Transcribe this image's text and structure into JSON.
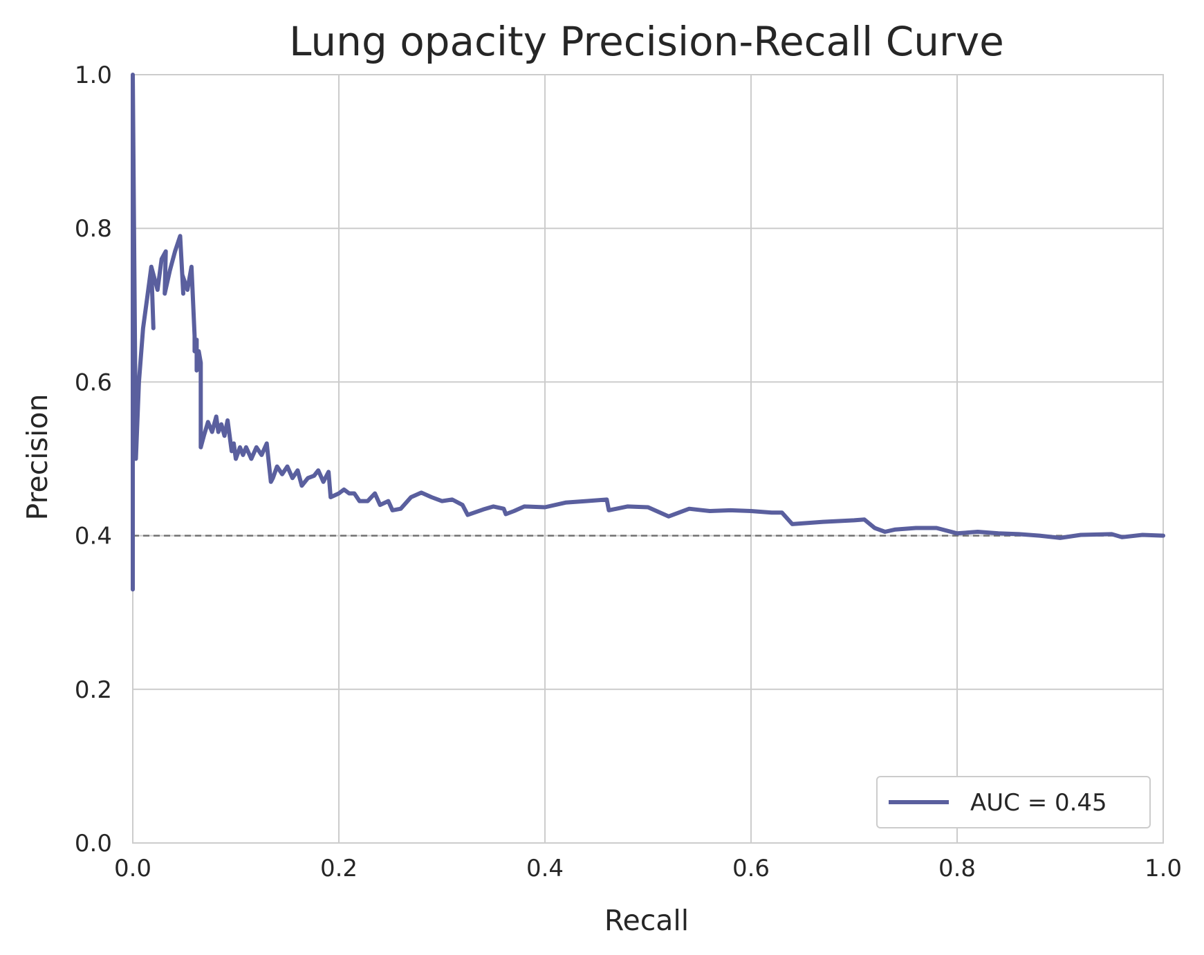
{
  "chart_data": {
    "type": "line",
    "title": "Lung opacity Precision-Recall Curve",
    "xlabel": "Recall",
    "ylabel": "Precision",
    "xlim": [
      0.0,
      1.0
    ],
    "ylim": [
      0.0,
      1.0
    ],
    "xticks": [
      "0.0",
      "0.2",
      "0.4",
      "0.6",
      "0.8",
      "1.0"
    ],
    "yticks": [
      "0.0",
      "0.2",
      "0.4",
      "0.6",
      "0.8",
      "1.0"
    ],
    "grid": true,
    "legend_position": "lower-right",
    "baseline": {
      "y": 0.4,
      "style": "dashed",
      "color": "#707070"
    },
    "series": [
      {
        "name": "AUC = 0.45",
        "color": "#5a5f9e",
        "x": [
          0.0,
          0.0,
          0.003,
          0.006,
          0.01,
          0.014,
          0.018,
          0.02,
          0.018,
          0.024,
          0.028,
          0.032,
          0.031,
          0.036,
          0.041,
          0.046,
          0.049,
          0.048,
          0.053,
          0.057,
          0.06,
          0.06,
          0.062,
          0.062,
          0.064,
          0.064,
          0.066,
          0.066,
          0.069,
          0.073,
          0.077,
          0.081,
          0.083,
          0.086,
          0.089,
          0.092,
          0.096,
          0.098,
          0.1,
          0.104,
          0.107,
          0.11,
          0.115,
          0.12,
          0.125,
          0.13,
          0.134,
          0.136,
          0.14,
          0.145,
          0.15,
          0.155,
          0.16,
          0.164,
          0.17,
          0.176,
          0.18,
          0.185,
          0.19,
          0.192,
          0.2,
          0.205,
          0.21,
          0.215,
          0.22,
          0.228,
          0.235,
          0.24,
          0.248,
          0.252,
          0.26,
          0.27,
          0.28,
          0.29,
          0.3,
          0.31,
          0.32,
          0.325,
          0.34,
          0.35,
          0.36,
          0.362,
          0.37,
          0.38,
          0.4,
          0.42,
          0.44,
          0.46,
          0.462,
          0.48,
          0.5,
          0.52,
          0.54,
          0.56,
          0.58,
          0.6,
          0.62,
          0.63,
          0.64,
          0.67,
          0.7,
          0.71,
          0.72,
          0.73,
          0.74,
          0.76,
          0.78,
          0.8,
          0.82,
          0.84,
          0.86,
          0.88,
          0.9,
          0.92,
          0.95,
          0.96,
          0.98,
          1.0
        ],
        "y": [
          0.33,
          1.0,
          0.5,
          0.6,
          0.67,
          0.71,
          0.75,
          0.67,
          0.75,
          0.72,
          0.76,
          0.77,
          0.715,
          0.745,
          0.77,
          0.79,
          0.715,
          0.74,
          0.72,
          0.75,
          0.66,
          0.64,
          0.655,
          0.615,
          0.62,
          0.64,
          0.625,
          0.515,
          0.53,
          0.548,
          0.535,
          0.555,
          0.535,
          0.545,
          0.53,
          0.55,
          0.51,
          0.52,
          0.5,
          0.515,
          0.505,
          0.515,
          0.5,
          0.515,
          0.505,
          0.52,
          0.47,
          0.475,
          0.49,
          0.48,
          0.49,
          0.475,
          0.485,
          0.465,
          0.475,
          0.478,
          0.485,
          0.47,
          0.483,
          0.45,
          0.455,
          0.46,
          0.455,
          0.455,
          0.445,
          0.445,
          0.455,
          0.44,
          0.445,
          0.433,
          0.435,
          0.45,
          0.456,
          0.45,
          0.445,
          0.447,
          0.44,
          0.427,
          0.434,
          0.438,
          0.435,
          0.428,
          0.432,
          0.438,
          0.437,
          0.443,
          0.445,
          0.447,
          0.433,
          0.438,
          0.437,
          0.425,
          0.435,
          0.432,
          0.433,
          0.432,
          0.43,
          0.43,
          0.415,
          0.418,
          0.42,
          0.421,
          0.41,
          0.405,
          0.408,
          0.41,
          0.41,
          0.403,
          0.405,
          0.403,
          0.402,
          0.4,
          0.397,
          0.401,
          0.402,
          0.398,
          0.401,
          0.4
        ]
      }
    ]
  }
}
